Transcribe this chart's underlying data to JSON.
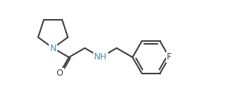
{
  "bg_color": "#ffffff",
  "line_color": "#3d3d3d",
  "n_color": "#4a90a4",
  "o_color": "#3d3d3d",
  "f_color": "#3d3d3d",
  "line_width": 1.5,
  "font_size": 9,
  "figsize": [
    3.51,
    1.4
  ],
  "dpi": 100,
  "xlim": [
    0,
    351
  ],
  "ylim": [
    0,
    140
  ]
}
